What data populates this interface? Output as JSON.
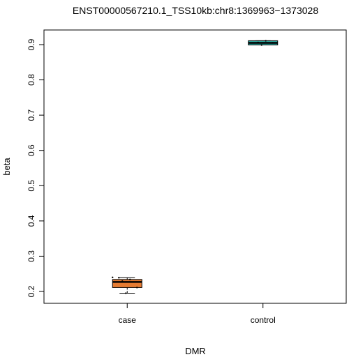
{
  "chart_data": {
    "type": "boxplot",
    "title": "ENST00000567210.1_TSS10kb:chr8:1369963−1373028",
    "xlabel": "DMR",
    "ylabel": "beta",
    "ylim": [
      0.18,
      0.93
    ],
    "yticks": [
      0.2,
      0.3,
      0.4,
      0.5,
      0.6,
      0.7,
      0.8,
      0.9
    ],
    "ytick_labels": [
      "0.2",
      "0.3",
      "0.4",
      "0.5",
      "0.6",
      "0.7",
      "0.8",
      "0.9"
    ],
    "grid": false,
    "categories": [
      "case",
      "control"
    ],
    "boxes": [
      {
        "category": "case",
        "color": "#e57b32",
        "whisker_low": 0.195,
        "q1": 0.211,
        "median": 0.227,
        "q3": 0.234,
        "whisker_high": 0.239,
        "points": [
          0.195,
          0.211,
          0.229,
          0.234,
          0.239,
          0.24
        ]
      },
      {
        "category": "control",
        "color": "#2aa198",
        "whisker_low": 0.899,
        "q1": 0.899,
        "median": 0.905,
        "q3": 0.911,
        "whisker_high": 0.911,
        "points": [
          0.899,
          0.905,
          0.906,
          0.911
        ]
      }
    ]
  }
}
